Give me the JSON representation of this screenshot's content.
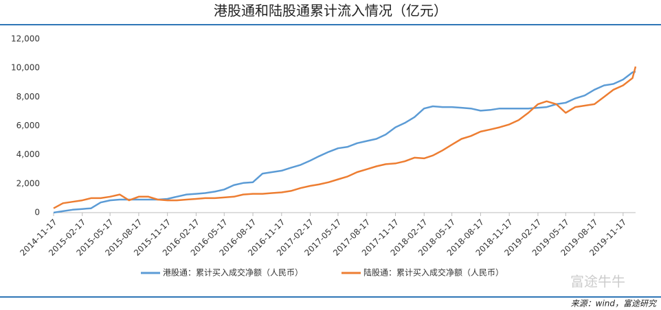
{
  "chart_data": {
    "type": "line",
    "title": "港股通和陆股通累计流入情况（亿元）",
    "x": [
      "2014-11-17",
      "2014-12-17",
      "2015-01-17",
      "2015-02-17",
      "2015-03-17",
      "2015-04-17",
      "2015-05-17",
      "2015-06-17",
      "2015-07-17",
      "2015-08-17",
      "2015-09-17",
      "2015-10-17",
      "2015-11-17",
      "2015-12-17",
      "2016-01-17",
      "2016-02-17",
      "2016-03-17",
      "2016-04-17",
      "2016-05-17",
      "2016-06-17",
      "2016-07-17",
      "2016-08-17",
      "2016-09-17",
      "2016-10-17",
      "2016-11-17",
      "2016-12-17",
      "2017-01-17",
      "2017-02-17",
      "2017-03-17",
      "2017-04-17",
      "2017-05-17",
      "2017-06-17",
      "2017-07-17",
      "2017-08-17",
      "2017-09-17",
      "2017-10-17",
      "2017-11-17",
      "2017-12-17",
      "2018-01-17",
      "2018-02-17",
      "2018-03-17",
      "2018-04-17",
      "2018-05-17",
      "2018-06-17",
      "2018-07-17",
      "2018-08-17",
      "2018-09-17",
      "2018-10-17",
      "2018-11-17",
      "2018-12-17",
      "2019-01-17",
      "2019-02-17",
      "2019-03-17",
      "2019-04-17",
      "2019-05-17",
      "2019-06-17",
      "2019-07-17",
      "2019-08-17",
      "2019-09-17",
      "2019-10-17",
      "2019-11-17",
      "2019-12-17",
      "2019-12-27"
    ],
    "series": [
      {
        "name": "港股通：累计买入成交净额（人民币）",
        "color": "#5b9bd5",
        "values": [
          0,
          100,
          200,
          250,
          300,
          700,
          850,
          900,
          900,
          900,
          900,
          900,
          950,
          1100,
          1250,
          1300,
          1350,
          1450,
          1600,
          1900,
          2050,
          2100,
          2700,
          2800,
          2900,
          3100,
          3300,
          3600,
          3900,
          4200,
          4450,
          4550,
          4800,
          4950,
          5100,
          5400,
          5900,
          6200,
          6600,
          7200,
          7350,
          7300,
          7300,
          7250,
          7200,
          7050,
          7100,
          7200,
          7200,
          7200,
          7200,
          7250,
          7300,
          7500,
          7600,
          7900,
          8100,
          8500,
          8800,
          8900,
          9200,
          9700,
          9750
        ]
      },
      {
        "name": "陆股通：累计买入成交净额（人民币）",
        "color": "#ed7d31",
        "values": [
          300,
          650,
          750,
          850,
          1000,
          1000,
          1100,
          1250,
          850,
          1100,
          1100,
          900,
          850,
          850,
          900,
          950,
          1000,
          1000,
          1050,
          1100,
          1250,
          1300,
          1300,
          1350,
          1400,
          1500,
          1700,
          1850,
          1950,
          2100,
          2300,
          2500,
          2800,
          3000,
          3200,
          3350,
          3400,
          3550,
          3800,
          3750,
          3950,
          4300,
          4700,
          5100,
          5300,
          5600,
          5750,
          5900,
          6100,
          6400,
          6900,
          7500,
          7700,
          7500,
          6900,
          7300,
          7400,
          7500,
          8000,
          8500,
          8800,
          9300,
          10100
        ]
      }
    ],
    "xticks": [
      "2014-11-17",
      "2015-02-17",
      "2015-05-17",
      "2015-08-17",
      "2015-11-17",
      "2016-02-17",
      "2016-05-17",
      "2016-08-17",
      "2016-11-17",
      "2017-02-17",
      "2017-05-17",
      "2017-08-17",
      "2017-11-17",
      "2018-02-17",
      "2018-05-17",
      "2018-08-17",
      "2018-11-17",
      "2019-02-17",
      "2019-05-17",
      "2019-08-17",
      "2019-11-17"
    ],
    "ylim": [
      0,
      12000
    ],
    "yticks": [
      0,
      {
        "value": 2000,
        "label": "2,000"
      },
      {
        "value": 4000,
        "label": "4,000"
      },
      {
        "value": 6000,
        "label": "6,000"
      },
      {
        "value": 8000,
        "label": "8,000"
      },
      {
        "value": 10000,
        "label": "10,000"
      },
      {
        "value": 12000,
        "label": "12,000"
      }
    ],
    "grid": false,
    "legend": "bottom",
    "source": "来源：wind，富途研究",
    "watermark": "富途牛牛"
  }
}
